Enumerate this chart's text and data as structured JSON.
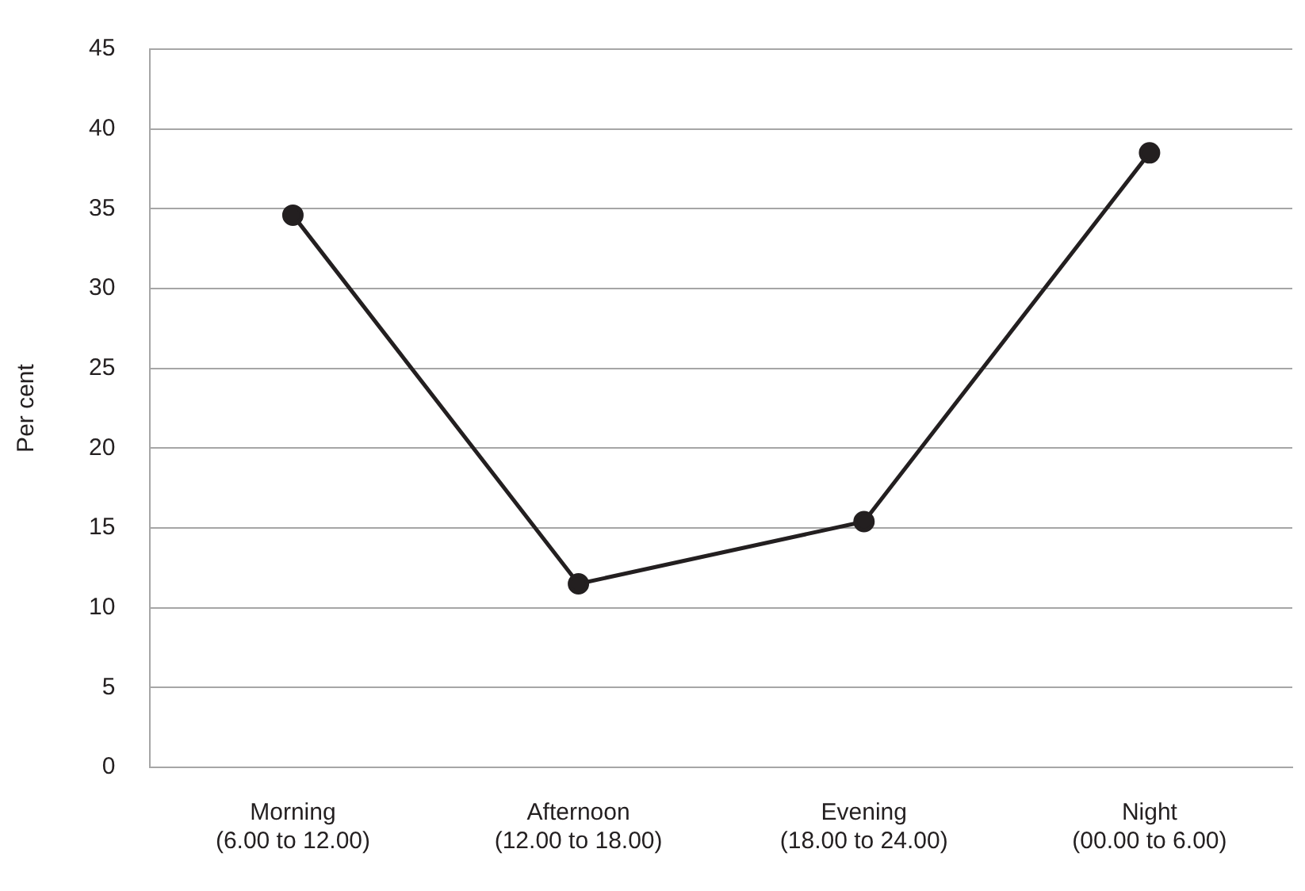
{
  "chart_data": {
    "type": "line",
    "ylabel": "Per cent",
    "categories": [
      "Morning\n(6.00 to 12.00)",
      "Afternoon\n(12.00 to 18.00)",
      "Evening\n(18.00 to 24.00)",
      "Night\n(00.00 to 6.00)"
    ],
    "series": [
      {
        "color": "#231f20",
        "values": [
          34.6,
          11.5,
          15.4,
          38.5
        ]
      }
    ],
    "ylim": [
      0,
      45
    ],
    "yticks": [
      0,
      5,
      10,
      15,
      20,
      25,
      30,
      35,
      40,
      45
    ],
    "grid": "y",
    "legend": false,
    "marker": "circle",
    "line_style": "solid"
  }
}
